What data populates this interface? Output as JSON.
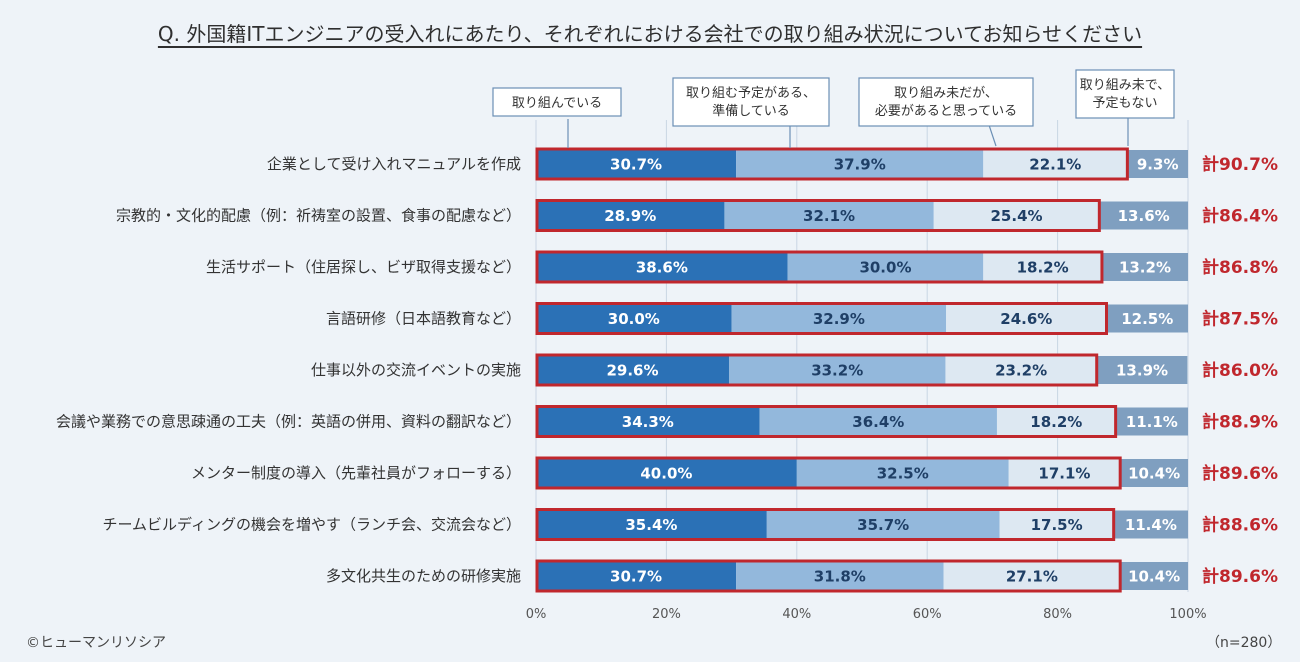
{
  "title": "Q. 外国籍ITエンジニアの受入れにあたり、それぞれにおける会社での取り組み状況についてお知らせください",
  "footer": {
    "copyright": "©ヒューマンリソシア",
    "n": "（n=280）"
  },
  "colors": {
    "s1": "#2b71b6",
    "s2": "#93b8dc",
    "s3": "#dde8f2",
    "s4": "#7f9fc0",
    "highlight": "#c0272d",
    "total": "#c0272d"
  },
  "chart_data": {
    "type": "bar",
    "orientation": "horizontal",
    "stacked": true,
    "xlim": [
      0,
      100
    ],
    "x_ticks": [
      "0%",
      "20%",
      "40%",
      "60%",
      "80%",
      "100%"
    ],
    "grid": true,
    "categories": [
      "企業として受け入れマニュアルを作成",
      "宗教的・文化的配慮（例：祈祷室の設置、食事の配慮など）",
      "生活サポート（住居探し、ビザ取得支援など）",
      "言語研修（日本語教育など）",
      "仕事以外の交流イベントの実施",
      "会議や業務での意思疎通の工夫（例：英語の併用、資料の翻訳など）",
      "メンター制度の導入（先輩社員がフォローする）",
      "チームビルディングの機会を増やす（ランチ会、交流会など）",
      "多文化共生のための研修実施"
    ],
    "series": [
      {
        "name": "取り組んでいる",
        "values": [
          30.7,
          28.9,
          38.6,
          30.0,
          29.6,
          34.3,
          40.0,
          35.4,
          30.7
        ],
        "labels": [
          "30.7%",
          "28.9%",
          "38.6%",
          "30.0%",
          "29.6%",
          "34.3%",
          "40.0%",
          "35.4%",
          "30.7%"
        ]
      },
      {
        "name": "取り組む予定がある、準備している",
        "values": [
          37.9,
          32.1,
          30.0,
          32.9,
          33.2,
          36.4,
          32.5,
          35.7,
          31.8
        ],
        "labels": [
          "37.9%",
          "32.1%",
          "30.0%",
          "32.9%",
          "33.2%",
          "36.4%",
          "32.5%",
          "35.7%",
          "31.8%"
        ]
      },
      {
        "name": "取り組み未だが、必要があると思っている",
        "values": [
          22.1,
          25.4,
          18.2,
          24.6,
          23.2,
          18.2,
          17.1,
          17.5,
          27.1
        ],
        "labels": [
          "22.1%",
          "25.4%",
          "18.2%",
          "24.6%",
          "23.2%",
          "18.2%",
          "17.1%",
          "17.5%",
          "27.1%"
        ]
      },
      {
        "name": "取り組み未で、予定もない",
        "values": [
          9.3,
          13.6,
          13.2,
          12.5,
          13.9,
          11.1,
          10.4,
          11.4,
          10.4
        ],
        "labels": [
          "9.3%",
          "13.6%",
          "13.2%",
          "12.5%",
          "13.9%",
          "11.1%",
          "10.4%",
          "11.4%",
          "10.4%"
        ]
      }
    ],
    "totals": [
      "計90.7%",
      "計86.4%",
      "計86.8%",
      "計87.5%",
      "計86.0%",
      "計88.9%",
      "計89.6%",
      "計88.6%",
      "計89.6%"
    ],
    "legend_callouts": [
      [
        "取り組んでいる"
      ],
      [
        "取り組む予定がある、",
        "準備している"
      ],
      [
        "取り組み未だが、",
        "必要があると思っている"
      ],
      [
        "取り組み未で、",
        "予定もない"
      ]
    ]
  }
}
